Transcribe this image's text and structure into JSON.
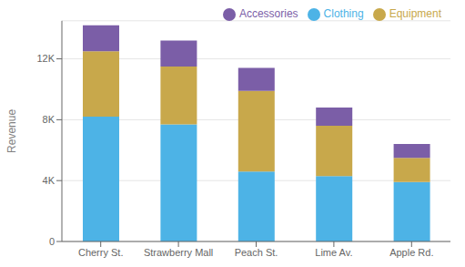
{
  "chart_data": {
    "type": "bar",
    "stacked": true,
    "categories": [
      "Cherry St.",
      "Strawberry Mall",
      "Peach St.",
      "Lime Av.",
      "Apple Rd."
    ],
    "series": [
      {
        "name": "Clothing",
        "color": "#4db3e6",
        "values": [
          8200,
          7700,
          4600,
          4300,
          3900
        ]
      },
      {
        "name": "Equipment",
        "color": "#c8a84b",
        "values": [
          4300,
          3800,
          5300,
          3300,
          1600
        ]
      },
      {
        "name": "Accessories",
        "color": "#7b5ea7",
        "values": [
          1700,
          1700,
          1500,
          1200,
          900
        ]
      }
    ],
    "ylabel": "Revenue",
    "ylim": [
      0,
      14500
    ],
    "yticks": [
      0,
      {
        "value": 4000,
        "label": "4K"
      },
      {
        "value": 8000,
        "label": "8K"
      },
      {
        "value": 12000,
        "label": "12K"
      }
    ],
    "grid": true,
    "legend": "upper right"
  }
}
